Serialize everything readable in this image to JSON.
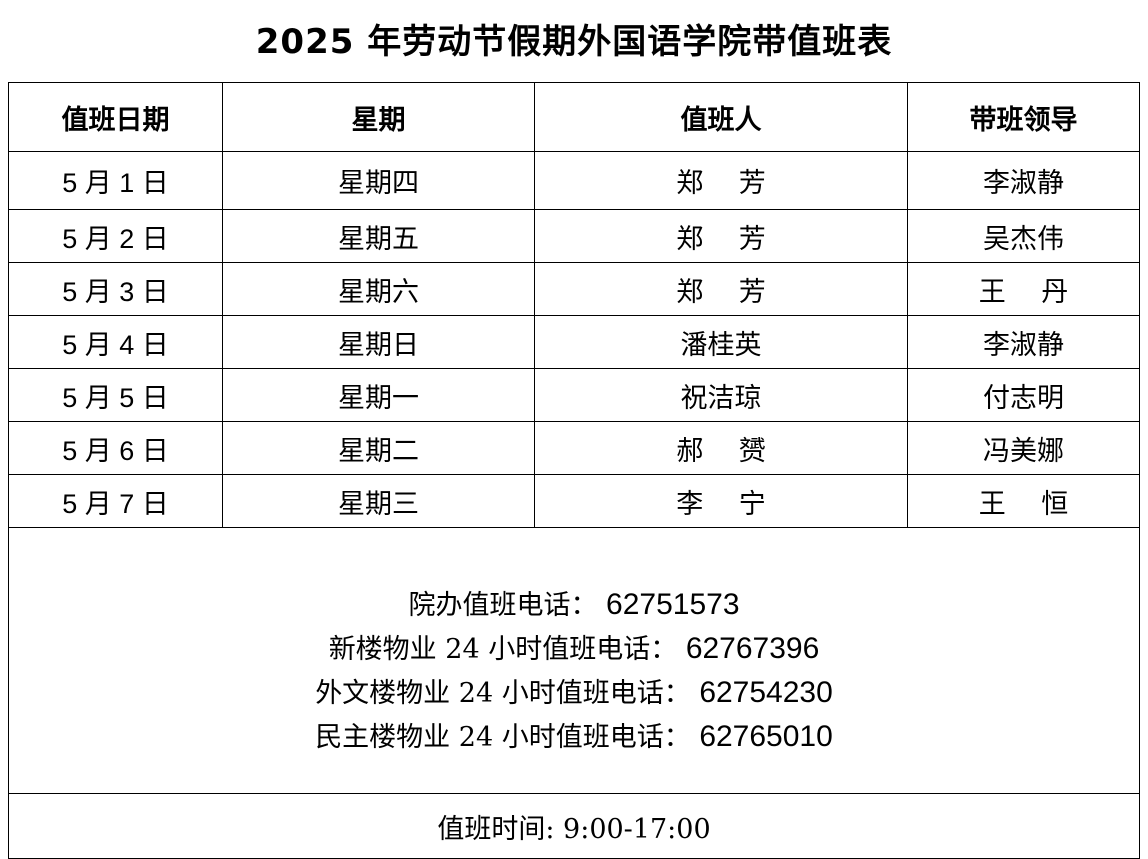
{
  "title": "2025 年劳动节假期外国语学院带值班表",
  "headers": [
    "值班日期",
    "星期",
    "值班人",
    "带班领导"
  ],
  "rows": [
    {
      "date": "5 月 1 日",
      "weekday": "星期四",
      "duty": "郑　 芳",
      "leader": "李淑静"
    },
    {
      "date": "5 月 2 日",
      "weekday": "星期五",
      "duty": "郑　 芳",
      "leader": "吴杰伟"
    },
    {
      "date": "5 月 3 日",
      "weekday": "星期六",
      "duty": "郑　 芳",
      "leader": "王　 丹"
    },
    {
      "date": "5 月 4 日",
      "weekday": "星期日",
      "duty": "潘桂英",
      "leader": "李淑静"
    },
    {
      "date": "5 月 5 日",
      "weekday": "星期一",
      "duty": "祝洁琼",
      "leader": "付志明"
    },
    {
      "date": "5 月 6 日",
      "weekday": "星期二",
      "duty": "郝　 赟",
      "leader": "冯美娜"
    },
    {
      "date": "5 月 7 日",
      "weekday": "星期三",
      "duty": "李　 宁",
      "leader": "王　 恒"
    }
  ],
  "phones": [
    {
      "label": "院办值班电话：",
      "number": "62751573"
    },
    {
      "label": "新楼物业 24 小时值班电话：",
      "number": "62767396"
    },
    {
      "label": "外文楼物业 24 小时值班电话：",
      "number": "62754230"
    },
    {
      "label": "民主楼物业 24 小时值班电话：",
      "number": "62765010"
    }
  ],
  "duty_time": "值班时间: 9:00-17:00"
}
